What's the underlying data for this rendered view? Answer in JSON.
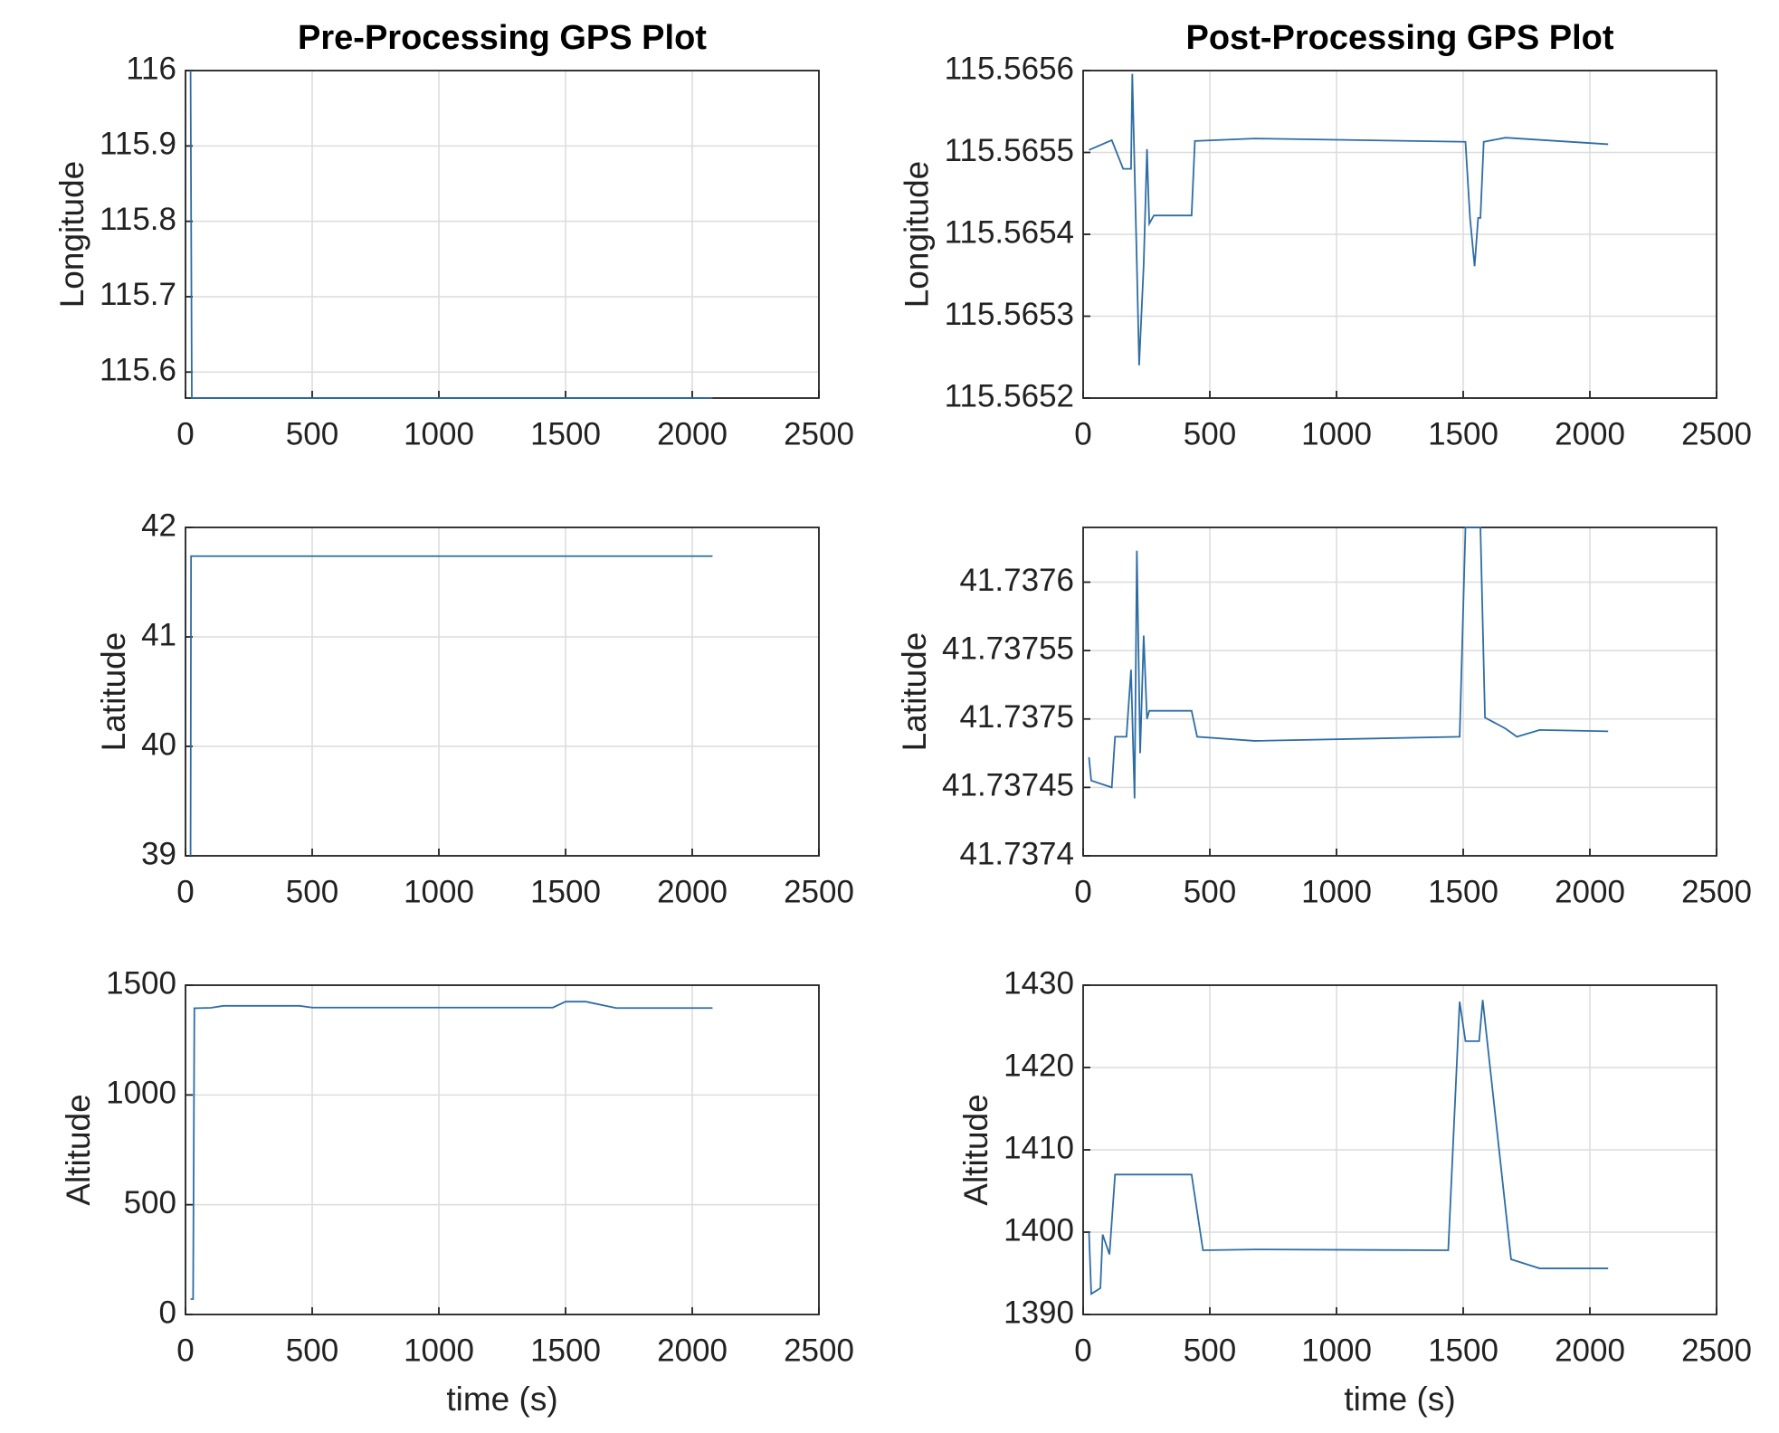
{
  "chart_data": [
    {
      "type": "line",
      "title": "Pre-Processing GPS Plot",
      "ylabel": "Longitude",
      "color": "#2e6da4",
      "grid": true,
      "x": [
        20,
        25,
        30,
        2080
      ],
      "values": [
        116,
        115.5655,
        115.5655,
        115.5655
      ],
      "xlim": [
        0,
        2500
      ],
      "xticks": [
        0,
        500,
        1000,
        1500,
        2000,
        2500
      ],
      "ylim": [
        115.5655,
        116
      ],
      "yticks": [
        115.6,
        115.7,
        115.8,
        115.9,
        116
      ]
    },
    {
      "type": "line",
      "title": "Post-Processing GPS Plot",
      "ylabel": "Longitude",
      "color": "#2e6da4",
      "grid": true,
      "x": [
        23,
        113,
        158,
        189,
        194,
        212,
        221,
        239,
        252,
        261,
        279,
        428,
        441,
        676,
        1509,
        1527,
        1545,
        1559,
        1568,
        1581,
        1667,
        2072
      ],
      "values": [
        115.565503,
        115.565515,
        115.56548,
        115.56548,
        115.565596,
        115.565363,
        115.56524,
        115.565363,
        115.565504,
        115.565413,
        115.565423,
        115.565423,
        115.565514,
        115.565517,
        115.565513,
        115.56542,
        115.565361,
        115.56542,
        115.56542,
        115.565513,
        115.565518,
        115.56551
      ],
      "xlim": [
        0,
        2500
      ],
      "xticks": [
        0,
        500,
        1000,
        1500,
        2000,
        2500
      ],
      "ylim": [
        115.5652,
        115.5656
      ],
      "yticks": [
        115.5652,
        115.5653,
        115.5654,
        115.5655,
        115.5656
      ]
    },
    {
      "type": "line",
      "ylabel": "Latitude",
      "color": "#2e6da4",
      "grid": true,
      "x": [
        20,
        22,
        30,
        2080
      ],
      "values": [
        39,
        41.7375,
        41.7375,
        41.7375
      ],
      "xlim": [
        0,
        2500
      ],
      "xticks": [
        0,
        500,
        1000,
        1500,
        2000,
        2500
      ],
      "ylim": [
        39,
        42
      ],
      "yticks": [
        39,
        40,
        41,
        42
      ]
    },
    {
      "type": "line",
      "ylabel": "Latitude",
      "color": "#2e6da4",
      "grid": true,
      "x": [
        23,
        32,
        113,
        126,
        171,
        189,
        203,
        212,
        225,
        239,
        252,
        261,
        428,
        450,
        676,
        1486,
        1509,
        1568,
        1586,
        1667,
        1712,
        1802,
        2072
      ],
      "values": [
        41.737472,
        41.737455,
        41.73745,
        41.737487,
        41.737487,
        41.737536,
        41.737442,
        41.737623,
        41.737475,
        41.737561,
        41.7375,
        41.737506,
        41.737506,
        41.737487,
        41.737484,
        41.737487,
        41.73764,
        41.73764,
        41.737501,
        41.737493,
        41.737487,
        41.737492,
        41.737491
      ],
      "xlim": [
        0,
        2500
      ],
      "xticks": [
        0,
        500,
        1000,
        1500,
        2000,
        2500
      ],
      "ylim": [
        41.7374,
        41.73764
      ],
      "yticks": [
        41.7374,
        41.73745,
        41.7375,
        41.73755,
        41.7376
      ]
    },
    {
      "type": "line",
      "ylabel": "Altitude",
      "xlabel": "time (s)",
      "color": "#2e6da4",
      "grid": true,
      "x": [
        20,
        30,
        35,
        100,
        150,
        450,
        500,
        1450,
        1500,
        1580,
        1700,
        2080
      ],
      "values": [
        70,
        70,
        1395,
        1397,
        1406,
        1406,
        1398,
        1398,
        1425,
        1425,
        1396,
        1396
      ],
      "xlim": [
        0,
        2500
      ],
      "xticks": [
        0,
        500,
        1000,
        1500,
        2000,
        2500
      ],
      "ylim": [
        0,
        1500
      ],
      "yticks": [
        0,
        500,
        1000,
        1500
      ]
    },
    {
      "type": "line",
      "ylabel": "Altitude",
      "xlabel": "time (s)",
      "color": "#2e6da4",
      "grid": true,
      "x": [
        23,
        32,
        68,
        77,
        104,
        126,
        428,
        473,
        676,
        1441,
        1486,
        1509,
        1563,
        1577,
        1689,
        1802,
        2072
      ],
      "values": [
        1400,
        1392.5,
        1393.2,
        1399.7,
        1397.3,
        1407,
        1407,
        1397.8,
        1397.9,
        1397.8,
        1428,
        1423.2,
        1423.2,
        1428.2,
        1396.7,
        1395.6,
        1395.6
      ],
      "xlim": [
        0,
        2500
      ],
      "xticks": [
        0,
        500,
        1000,
        1500,
        2000,
        2500
      ],
      "ylim": [
        1390,
        1430
      ],
      "yticks": [
        1390,
        1400,
        1410,
        1420,
        1430
      ]
    }
  ]
}
